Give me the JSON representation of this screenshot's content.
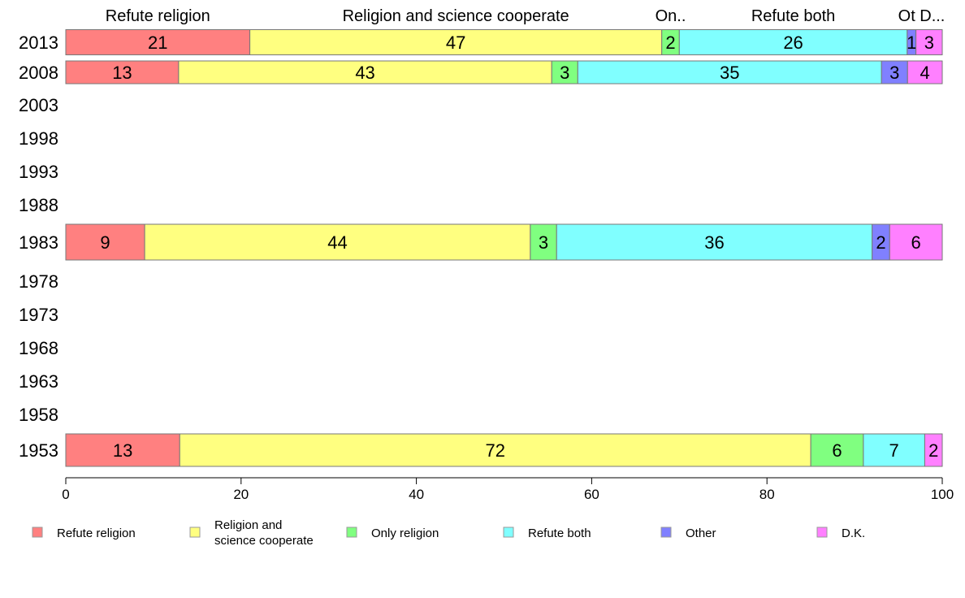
{
  "chart_data": {
    "type": "bar",
    "orientation": "horizontal-stacked",
    "title": "",
    "xlabel": "",
    "ylabel": "",
    "xlim": [
      0,
      100
    ],
    "x_ticks": [
      "0",
      "20",
      "40",
      "60",
      "80",
      "100"
    ],
    "categories": [
      "2013",
      "2008",
      "2003",
      "1998",
      "1993",
      "1988",
      "1983",
      "1978",
      "1973",
      "1968",
      "1963",
      "1958",
      "1953"
    ],
    "series": [
      {
        "name": "Refute religion",
        "color": "#FF8080",
        "values": [
          21,
          13,
          null,
          null,
          null,
          null,
          9,
          null,
          null,
          null,
          null,
          null,
          13
        ]
      },
      {
        "name": "Religion and science cooperate",
        "color": "#FFFF80",
        "values": [
          47,
          43,
          null,
          null,
          null,
          null,
          44,
          null,
          null,
          null,
          null,
          null,
          72
        ]
      },
      {
        "name": "Only religion",
        "color": "#80FF80",
        "values": [
          2,
          3,
          null,
          null,
          null,
          null,
          3,
          null,
          null,
          null,
          null,
          null,
          6
        ]
      },
      {
        "name": "Refute both",
        "color": "#80FFFF",
        "values": [
          26,
          35,
          null,
          null,
          null,
          null,
          36,
          null,
          null,
          null,
          null,
          null,
          7
        ]
      },
      {
        "name": "Other",
        "color": "#8080FF",
        "values": [
          1,
          3,
          null,
          null,
          null,
          null,
          2,
          null,
          null,
          null,
          null,
          null,
          0
        ]
      },
      {
        "name": "D.K.",
        "color": "#FF80FF",
        "values": [
          3,
          4,
          null,
          null,
          null,
          null,
          6,
          null,
          null,
          null,
          null,
          null,
          2
        ]
      }
    ],
    "header_labels": [
      "Refute religion",
      "Religion and science cooperate",
      "On..",
      "Refute both",
      "Ot",
      "D..."
    ],
    "legend": {
      "placement": "bottom",
      "entries": [
        "Refute religion",
        "Religion and\nscience cooperate",
        "Only religion",
        "Refute both",
        "Other",
        "D.K."
      ]
    }
  }
}
